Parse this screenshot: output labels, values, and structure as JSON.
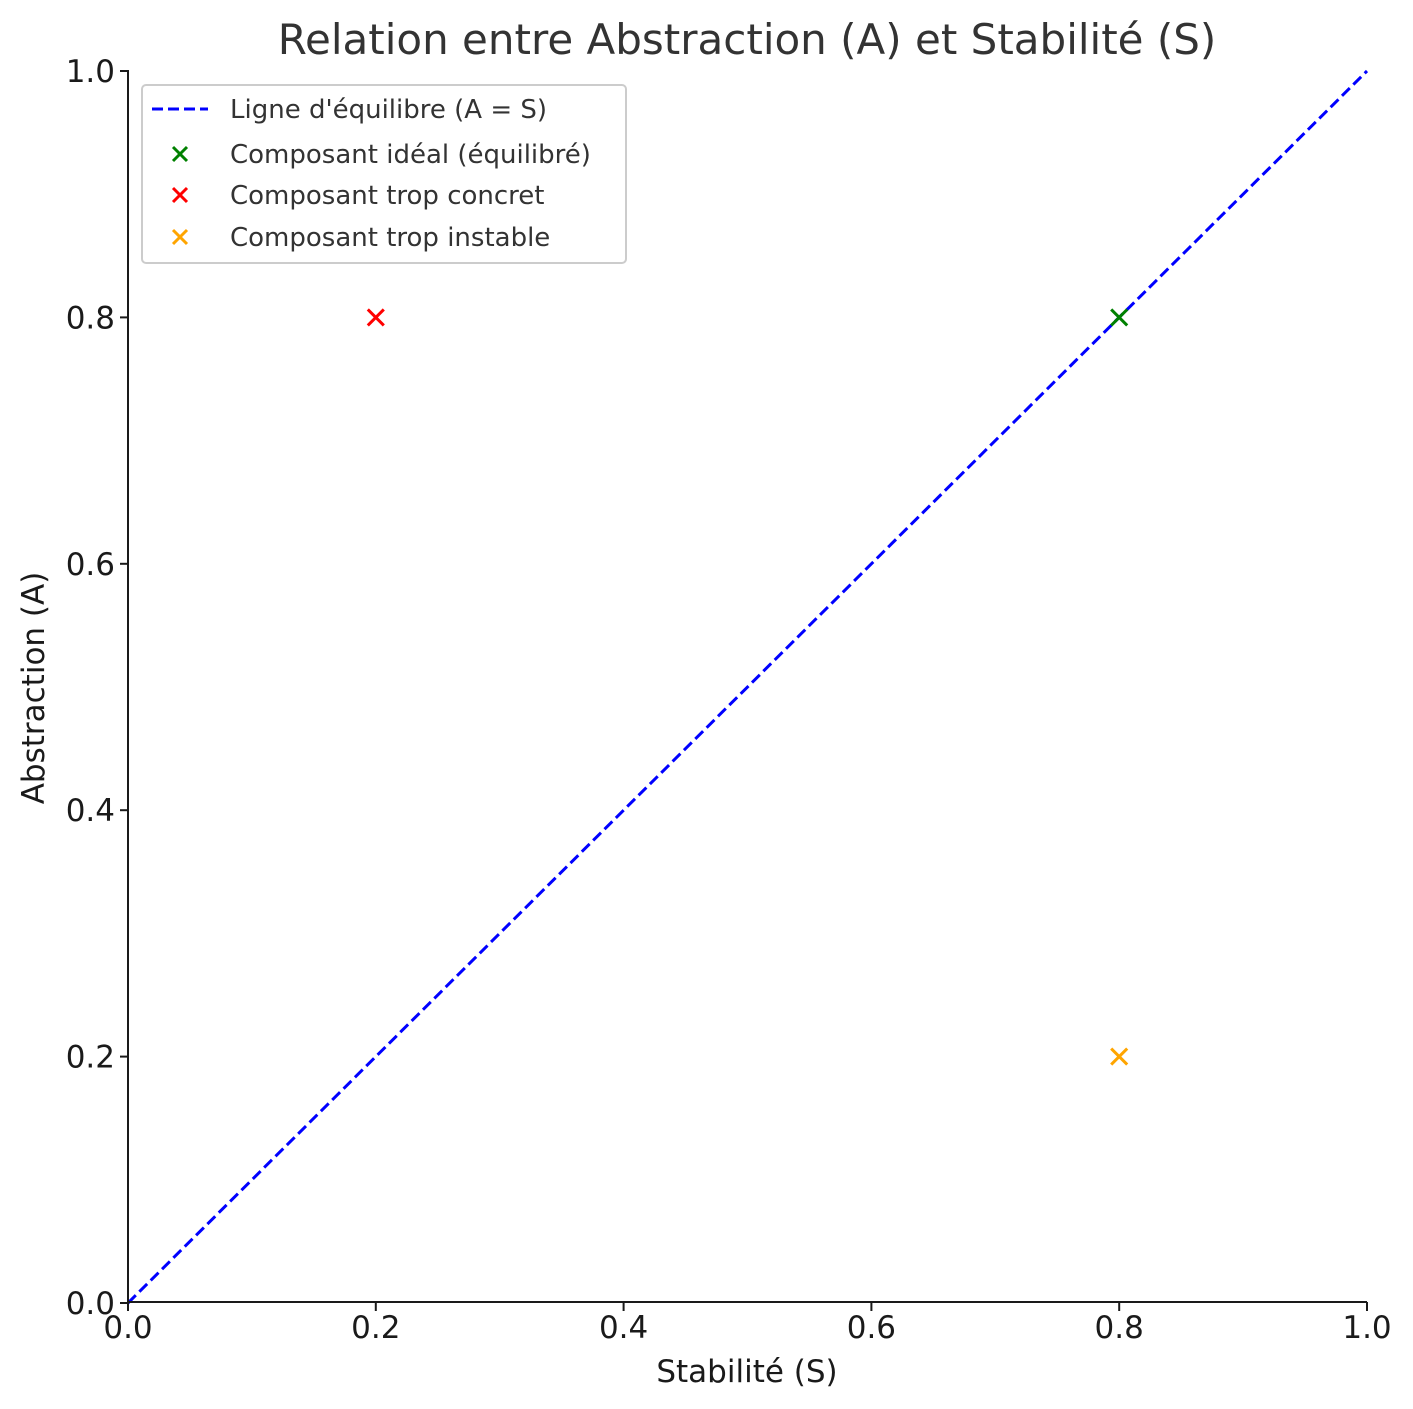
{
  "chart_data": {
    "type": "scatter",
    "title": "Relation entre Abstraction (A) et Stabilité (S)",
    "xlabel": "Stabilité (S)",
    "ylabel": "Abstraction (A)",
    "xlim": [
      0,
      1
    ],
    "ylim": [
      0,
      1
    ],
    "xticks": [
      "0.0",
      "0.2",
      "0.4",
      "0.6",
      "0.8",
      "1.0"
    ],
    "yticks": [
      "0.0",
      "0.2",
      "0.4",
      "0.6",
      "0.8",
      "1.0"
    ],
    "grid": false,
    "legend_position": "top-left",
    "line": {
      "name": "Ligne d'équilibre (A = S)",
      "x": [
        0,
        1
      ],
      "y": [
        0,
        1
      ],
      "color": "#0000ff",
      "style": "dashed"
    },
    "series": [
      {
        "name": "Composant idéal (équilibré)",
        "marker": "x",
        "color": "#008000",
        "points": [
          {
            "x": 0.8,
            "y": 0.8
          }
        ]
      },
      {
        "name": "Composant trop concret",
        "marker": "x",
        "color": "#ff0000",
        "points": [
          {
            "x": 0.2,
            "y": 0.8
          }
        ]
      },
      {
        "name": "Composant trop instable",
        "marker": "x",
        "color": "#ffa500",
        "points": [
          {
            "x": 0.8,
            "y": 0.2
          }
        ]
      }
    ]
  }
}
